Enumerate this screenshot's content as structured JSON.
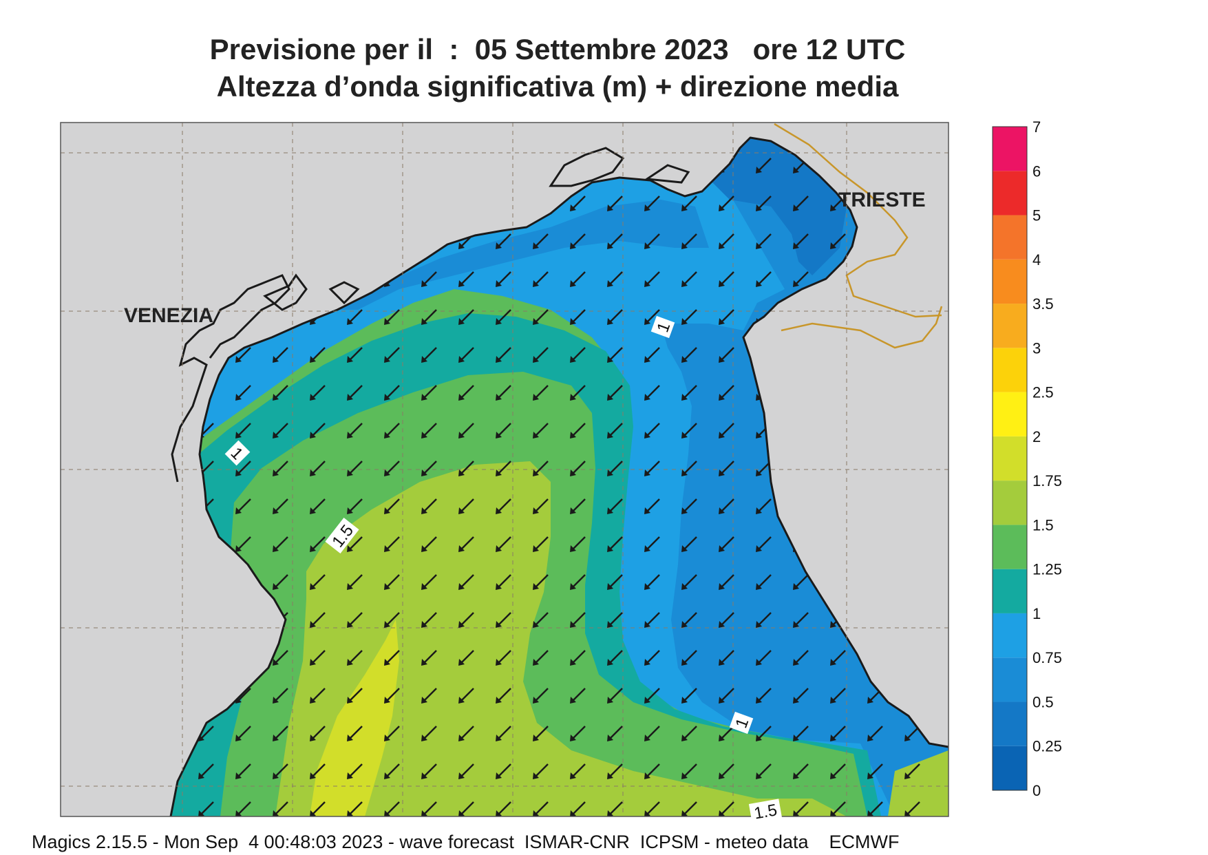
{
  "title": {
    "line1": "Previsione per il  :  05 Settembre 2023   ore 12 UTC",
    "line2": "Altezza d’onda significativa (m) + direzione media"
  },
  "cities": {
    "venezia": "VENEZIA",
    "trieste": "TRIESTE"
  },
  "contour_labels": {
    "one": "1",
    "one_five": "1.5"
  },
  "legend": {
    "unit": "m",
    "ticks": [
      "0",
      "0.25",
      "0.5",
      "0.75",
      "1",
      "1.25",
      "1.5",
      "1.75",
      "2",
      "2.5",
      "3",
      "3.5",
      "4",
      "5",
      "6",
      "7"
    ],
    "colors": [
      "#0a64b4",
      "#1478c6",
      "#1a8cd6",
      "#1ea0e4",
      "#14aaa0",
      "#5cbc5a",
      "#a4cc3c",
      "#d2de2a",
      "#fff014",
      "#fcd20a",
      "#f8ac1e",
      "#f88c1e",
      "#f4742a",
      "#ec2a2a",
      "#ec1464"
    ]
  },
  "land_color": "#d3d3d4",
  "arrow_direction": "south-west",
  "footer": "Magics 2.15.5 - Mon Sep  4 00:48:03 2023 - wave forecast  ISMAR-CNR  ICPSM - meteo data    ECMWF"
}
